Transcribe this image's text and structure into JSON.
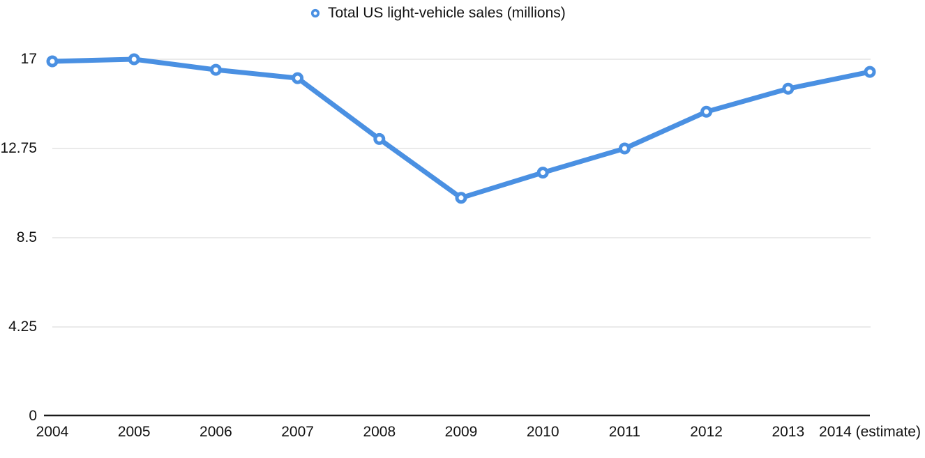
{
  "chart_data": {
    "type": "line",
    "title": "Total US light-vehicle sales (millions)",
    "categories": [
      "2004",
      "2005",
      "2006",
      "2007",
      "2008",
      "2009",
      "2010",
      "2011",
      "2012",
      "2013",
      "2014 (estimate)"
    ],
    "series": [
      {
        "name": "Total US light-vehicle sales (millions)",
        "values": [
          16.9,
          17.0,
          16.5,
          16.1,
          13.2,
          10.4,
          11.6,
          12.75,
          14.5,
          15.6,
          16.4
        ]
      }
    ],
    "xlabel": "",
    "ylabel": "",
    "ylim": [
      0,
      17
    ],
    "y_ticks": [
      0,
      4.25,
      8.5,
      12.75,
      17
    ],
    "y_tick_labels": [
      "0",
      "4.25",
      "8.5",
      "12.75",
      "17"
    ],
    "grid": "horizontal",
    "legend_position": "top-center",
    "marker_style": "open-circle",
    "colors": {
      "series": "#4a90e2",
      "marker_fill": "#ffffff",
      "grid": "#e3e3e3",
      "axis": "#1a1a1a",
      "text": "#111111"
    }
  }
}
